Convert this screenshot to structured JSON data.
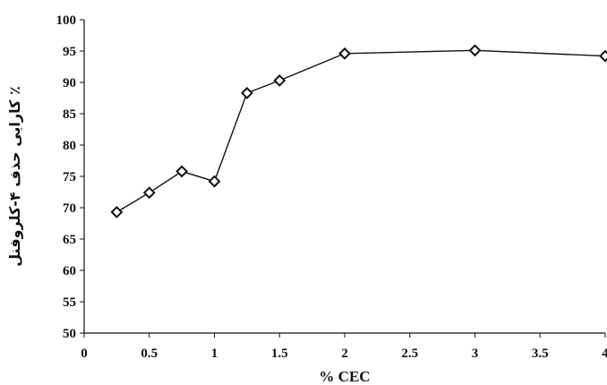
{
  "chart_data": {
    "type": "line",
    "xlabel": "% CEC",
    "ylabel": "٪ کارایی حذف ۴-کلروفنل",
    "xlim": [
      0,
      4
    ],
    "ylim": [
      50,
      100
    ],
    "x_ticks": [
      "0",
      "0.5",
      "1",
      "1.5",
      "2",
      "2.5",
      "3",
      "3.5",
      "4"
    ],
    "y_ticks": [
      "50",
      "55",
      "60",
      "65",
      "70",
      "75",
      "80",
      "85",
      "90",
      "95",
      "100"
    ],
    "grid": false,
    "legend": "none",
    "marker": "diamond",
    "series": [
      {
        "x": [
          0.25,
          0.5,
          0.75,
          1.0,
          1.25,
          1.5,
          2.0,
          3.0,
          4.0
        ],
        "y": [
          69.3,
          72.4,
          75.8,
          74.2,
          88.3,
          90.3,
          94.6,
          95.1,
          94.2
        ]
      }
    ],
    "colors": {
      "line": "#111111",
      "marker_fill": "#ffffff",
      "axis": "#111111"
    }
  }
}
